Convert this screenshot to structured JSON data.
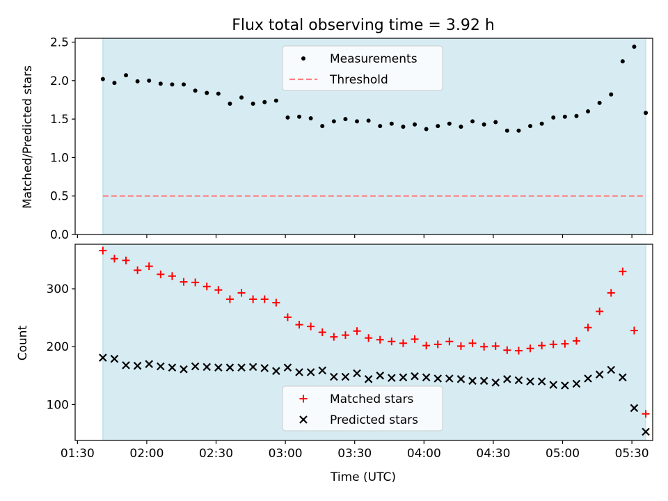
{
  "figure": {
    "title": "Flux total observing time = 3.92 h",
    "xlabel": "Time (UTC)",
    "x_ticks": [
      "01:30",
      "02:00",
      "02:30",
      "03:00",
      "03:30",
      "04:00",
      "04:30",
      "05:00",
      "05:30"
    ],
    "shade_color": "#add8e6"
  },
  "chart_data": [
    {
      "type": "scatter",
      "ylabel": "Matched/Predicted stars",
      "xlim": [
        "01:29",
        "05:39"
      ],
      "ylim": [
        0,
        2.55
      ],
      "y_ticks": [
        0.0,
        0.5,
        1.0,
        1.5,
        2.0,
        2.5
      ],
      "y_tick_labels": [
        "0.0",
        "0.5",
        "1.0",
        "1.5",
        "2.0",
        "2.5"
      ],
      "shaded_span": [
        "01:41",
        "05:36"
      ],
      "threshold": 0.5,
      "legend": {
        "placement": "upper center",
        "entries": [
          "Measurements",
          "Threshold"
        ]
      },
      "series": [
        {
          "name": "Measurements",
          "color": "#000000",
          "x": [
            "01:41",
            "01:46",
            "01:51",
            "01:56",
            "02:01",
            "02:06",
            "02:11",
            "02:16",
            "02:21",
            "02:26",
            "02:31",
            "02:36",
            "02:41",
            "02:46",
            "02:51",
            "02:56",
            "03:01",
            "03:06",
            "03:11",
            "03:16",
            "03:21",
            "03:26",
            "03:31",
            "03:36",
            "03:41",
            "03:46",
            "03:51",
            "03:56",
            "04:01",
            "04:06",
            "04:11",
            "04:16",
            "04:21",
            "04:26",
            "04:31",
            "04:36",
            "04:41",
            "04:46",
            "04:51",
            "04:56",
            "05:01",
            "05:06",
            "05:11",
            "05:16",
            "05:21",
            "05:26",
            "05:31",
            "05:36"
          ],
          "y": [
            2.02,
            1.97,
            2.07,
            1.99,
            2.0,
            1.96,
            1.95,
            1.95,
            1.87,
            1.84,
            1.83,
            1.7,
            1.78,
            1.7,
            1.72,
            1.74,
            1.52,
            1.53,
            1.51,
            1.41,
            1.47,
            1.5,
            1.47,
            1.48,
            1.41,
            1.44,
            1.4,
            1.43,
            1.37,
            1.41,
            1.44,
            1.4,
            1.47,
            1.43,
            1.46,
            1.35,
            1.35,
            1.41,
            1.44,
            1.52,
            1.53,
            1.54,
            1.6,
            1.71,
            1.82,
            2.25,
            2.44,
            1.58
          ]
        },
        {
          "name": "Threshold",
          "color": "#ff7f7f",
          "style": "dashed",
          "x": [
            "01:41",
            "05:36"
          ],
          "y": [
            0.5,
            0.5
          ]
        }
      ]
    },
    {
      "type": "scatter",
      "ylabel": "Count",
      "xlim": [
        "01:29",
        "05:39"
      ],
      "ylim": [
        38,
        377
      ],
      "y_ticks": [
        100,
        200,
        300
      ],
      "y_tick_labels": [
        "100",
        "200",
        "300"
      ],
      "shaded_span": [
        "01:41",
        "05:36"
      ],
      "legend": {
        "placement": "lower center",
        "entries": [
          "Matched stars",
          "Predicted stars"
        ]
      },
      "series": [
        {
          "name": "Matched stars",
          "marker": "plus",
          "color": "#ff0000",
          "x": [
            "01:41",
            "01:46",
            "01:51",
            "01:56",
            "02:01",
            "02:06",
            "02:11",
            "02:16",
            "02:21",
            "02:26",
            "02:31",
            "02:36",
            "02:41",
            "02:46",
            "02:51",
            "02:56",
            "03:01",
            "03:06",
            "03:11",
            "03:16",
            "03:21",
            "03:26",
            "03:31",
            "03:36",
            "03:41",
            "03:46",
            "03:51",
            "03:56",
            "04:01",
            "04:06",
            "04:11",
            "04:16",
            "04:21",
            "04:26",
            "04:31",
            "04:36",
            "04:41",
            "04:46",
            "04:51",
            "04:56",
            "05:01",
            "05:06",
            "05:11",
            "05:16",
            "05:21",
            "05:26",
            "05:31",
            "05:36"
          ],
          "y": [
            366,
            352,
            349,
            332,
            339,
            325,
            322,
            312,
            311,
            304,
            298,
            282,
            293,
            282,
            282,
            276,
            251,
            238,
            235,
            225,
            217,
            220,
            227,
            215,
            212,
            209,
            206,
            213,
            202,
            204,
            209,
            201,
            206,
            200,
            201,
            194,
            193,
            197,
            202,
            204,
            205,
            210,
            233,
            261,
            293,
            330,
            228,
            84
          ]
        },
        {
          "name": "Predicted stars",
          "marker": "x",
          "color": "#000000",
          "x": [
            "01:41",
            "01:46",
            "01:51",
            "01:56",
            "02:01",
            "02:06",
            "02:11",
            "02:16",
            "02:21",
            "02:26",
            "02:31",
            "02:36",
            "02:41",
            "02:46",
            "02:51",
            "02:56",
            "03:01",
            "03:06",
            "03:11",
            "03:16",
            "03:21",
            "03:26",
            "03:31",
            "03:36",
            "03:41",
            "03:46",
            "03:51",
            "03:56",
            "04:01",
            "04:06",
            "04:11",
            "04:16",
            "04:21",
            "04:26",
            "04:31",
            "04:36",
            "04:41",
            "04:46",
            "04:51",
            "04:56",
            "05:01",
            "05:06",
            "05:11",
            "05:16",
            "05:21",
            "05:26",
            "05:31",
            "05:36"
          ],
          "y": [
            181,
            179,
            168,
            167,
            170,
            166,
            164,
            161,
            166,
            165,
            164,
            164,
            164,
            165,
            163,
            158,
            164,
            156,
            156,
            159,
            148,
            148,
            154,
            144,
            150,
            146,
            147,
            149,
            147,
            145,
            145,
            144,
            141,
            141,
            138,
            144,
            142,
            140,
            140,
            134,
            133,
            136,
            145,
            152,
            160,
            147,
            94,
            53
          ]
        }
      ]
    }
  ]
}
